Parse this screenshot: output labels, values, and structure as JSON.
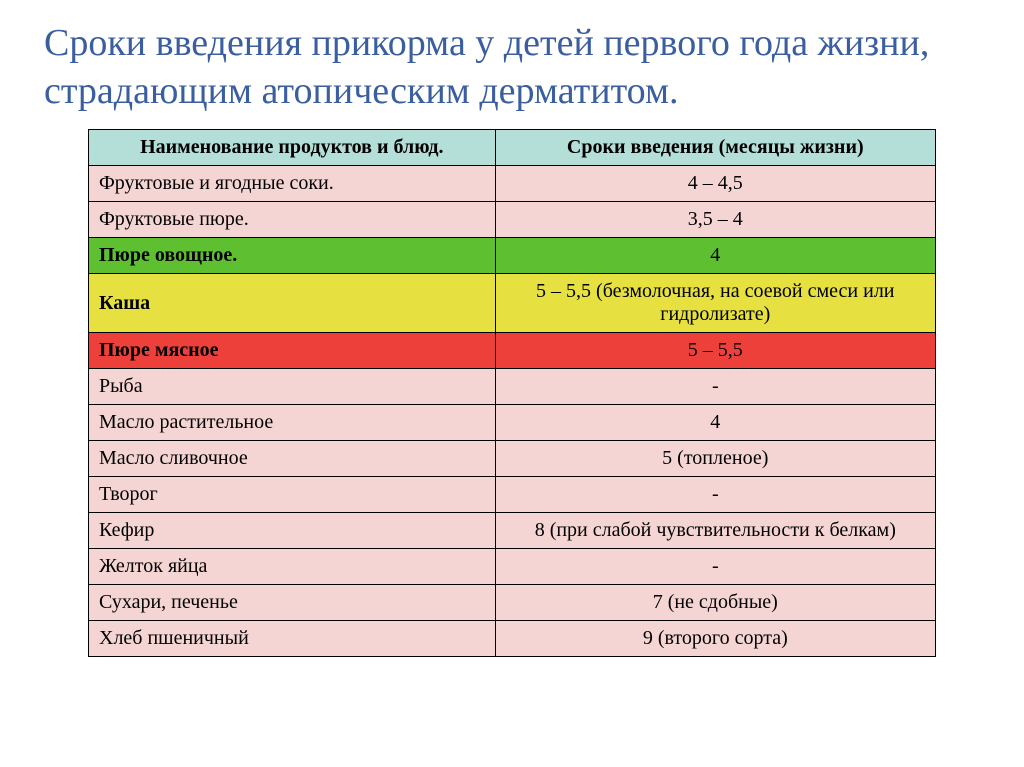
{
  "title": "Сроки введения прикорма у детей первого года жизни, страдающим атопическим дерматитом.",
  "title_color": "#3a5ea0",
  "table": {
    "header_bg": "#b4dfd8",
    "default_row_bg": "#f4d5d3",
    "border_color": "#000000",
    "columns": [
      "Наименование продуктов и блюд.",
      "Сроки введения (месяцы жизни)"
    ],
    "rows": [
      {
        "name": "Фруктовые и ягодные соки.",
        "timing": "4 – 4,5",
        "bg": "#f4d5d3",
        "bold": false
      },
      {
        "name": "Фруктовые пюре.",
        "timing": "3,5 – 4",
        "bg": "#f4d5d3",
        "bold": false
      },
      {
        "name": "Пюре овощное.",
        "timing": "4",
        "bg": "#5ec031",
        "bold": true
      },
      {
        "name": "Каша",
        "timing": "5 – 5,5 (безмолочная, на соевой смеси или гидролизате)",
        "bg": "#e6e040",
        "bold": true
      },
      {
        "name": "Пюре мясное",
        "timing": "5 – 5,5",
        "bg": "#ee403b",
        "bold": true
      },
      {
        "name": "Рыба",
        "timing": "-",
        "bg": "#f4d5d3",
        "bold": false
      },
      {
        "name": "Масло растительное",
        "timing": "4",
        "bg": "#f4d5d3",
        "bold": false
      },
      {
        "name": "Масло сливочное",
        "timing": "5 (топленое)",
        "bg": "#f4d5d3",
        "bold": false
      },
      {
        "name": "Творог",
        "timing": "-",
        "bg": "#f4d5d3",
        "bold": false
      },
      {
        "name": "Кефир",
        "timing": "8 (при слабой чувствительности к белкам)",
        "bg": "#f4d5d3",
        "bold": false
      },
      {
        "name": "Желток яйца",
        "timing": "-",
        "bg": "#f4d5d3",
        "bold": false
      },
      {
        "name": "Сухари, печенье",
        "timing": "7 (не сдобные)",
        "bg": "#f4d5d3",
        "bold": false
      },
      {
        "name": "Хлеб пшеничный",
        "timing": "9 (второго сорта)",
        "bg": "#f4d5d3",
        "bold": false
      }
    ]
  }
}
